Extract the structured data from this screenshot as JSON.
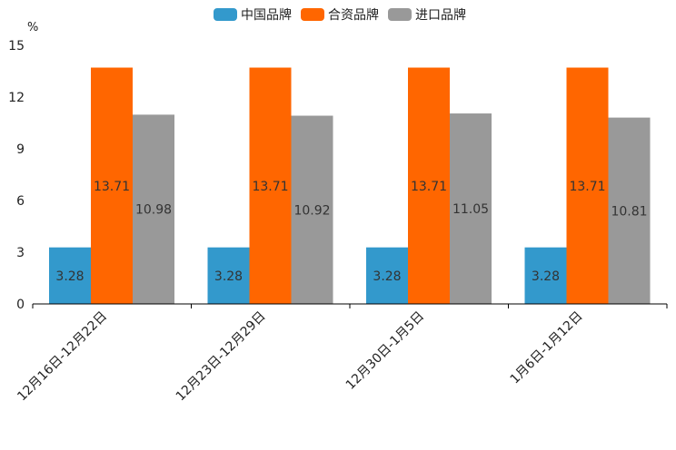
{
  "chart_data": {
    "type": "bar",
    "unit": "%",
    "categories": [
      "12月16日-12月22日",
      "12月23日-12月29日",
      "12月30日-1月5日",
      "1月6日-1月12日"
    ],
    "series": [
      {
        "name": "中国品牌",
        "color": "#3399cc",
        "values": [
          3.28,
          3.28,
          3.28,
          3.28
        ]
      },
      {
        "name": "合资品牌",
        "color": "#ff6600",
        "values": [
          13.71,
          13.71,
          13.71,
          13.71
        ]
      },
      {
        "name": "进口品牌",
        "color": "#999999",
        "values": [
          10.98,
          10.92,
          11.05,
          10.81
        ]
      }
    ],
    "yticks": [
      0,
      3,
      6,
      9,
      12,
      15
    ],
    "ylim": [
      0,
      15
    ],
    "legend_position": "top"
  }
}
